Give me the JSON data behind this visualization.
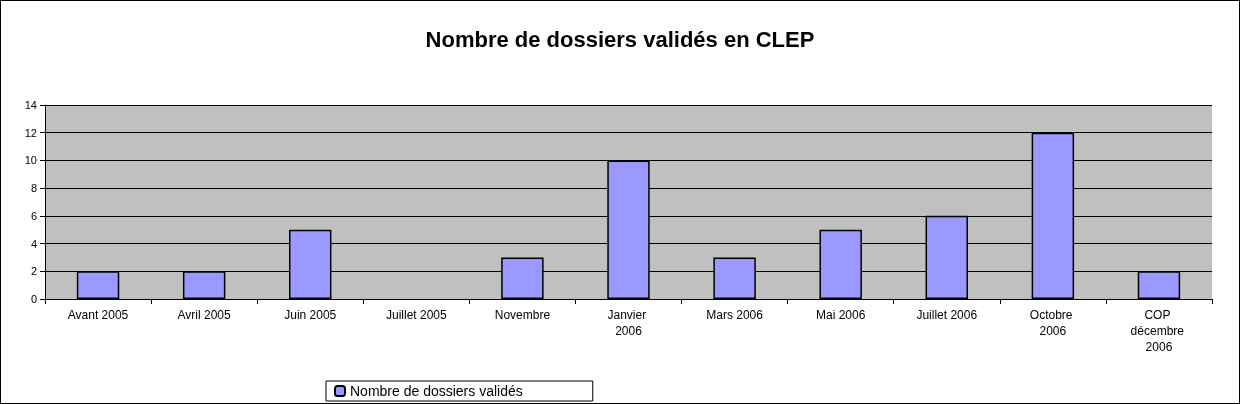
{
  "chart_data": {
    "type": "bar",
    "title": "Nombre de dossiers validés en CLEP",
    "categories": [
      "Avant 2005",
      "Avril 2005",
      "Juin 2005",
      "Juillet 2005",
      "Novembre",
      "Janvier 2006",
      "Mars 2006",
      "Mai 2006",
      "Juillet 2006",
      "Octobre 2006",
      "COP décembre 2006"
    ],
    "series": [
      {
        "name": "Nombre de dossiers validés",
        "color": "#9999ff",
        "values": [
          2,
          2,
          5,
          null,
          3,
          10,
          3,
          5,
          6,
          12,
          2
        ]
      }
    ],
    "ylim": [
      0,
      14
    ],
    "yticks": [
      0,
      2,
      4,
      6,
      8,
      10,
      12,
      14
    ],
    "grid": "y",
    "legend": "bottom"
  }
}
